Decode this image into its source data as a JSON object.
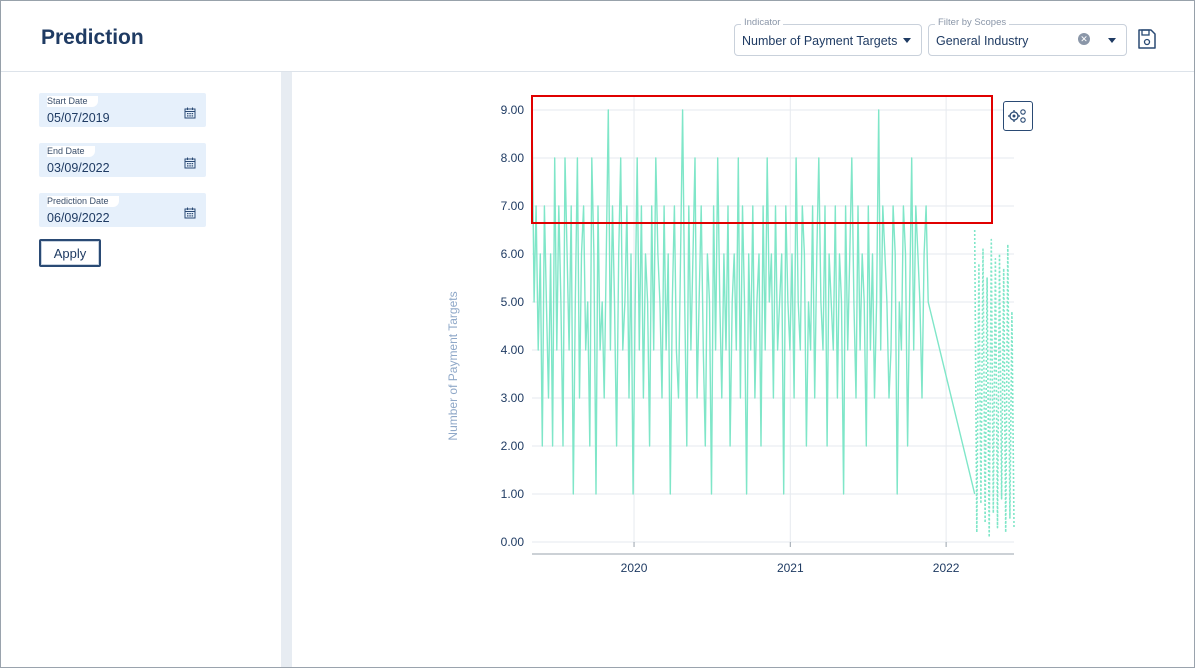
{
  "header": {
    "title": "Prediction",
    "indicator": {
      "legend": "Indicator",
      "value": "Number of Payment Targets"
    },
    "scope_filter": {
      "legend": "Filter by Scopes",
      "value": "General Industry"
    }
  },
  "sidebar": {
    "start_date": {
      "label": "Start Date",
      "value": "05/07/2019"
    },
    "end_date": {
      "label": "End Date",
      "value": "03/09/2022"
    },
    "prediction_date": {
      "label": "Prediction Date",
      "value": "06/09/2022"
    },
    "apply_label": "Apply"
  },
  "icons": {
    "indicator_dropdown": "chevron-down-icon",
    "scope_clear": "clear-icon",
    "scope_dropdown": "chevron-down-icon",
    "save": "save-icon",
    "calendar": "calendar-icon",
    "chart_settings": "settings-icon"
  },
  "colors": {
    "series_line": "#7fe6c8",
    "highlight_box": "#e00000",
    "title": "#1f3b63"
  },
  "chart_data": {
    "type": "line",
    "xlabel": "",
    "ylabel": "Number of Payment Targets",
    "yticks": [
      "0.00",
      "1.00",
      "2.00",
      "3.00",
      "4.00",
      "5.00",
      "6.00",
      "7.00",
      "8.00",
      "9.00"
    ],
    "xticks": [
      "2020",
      "2021",
      "2022"
    ],
    "ylim": [
      0,
      9
    ],
    "xlim": [
      "2019-05-07",
      "2022-06-09"
    ],
    "grid": true,
    "series": [
      {
        "style": "solid",
        "start": "2019-05-07",
        "end": "2021-11-20",
        "values": [
          9,
          5,
          7,
          4,
          6,
          2,
          7,
          5,
          3,
          6,
          2,
          8,
          4,
          7,
          5,
          2,
          8,
          6,
          4,
          7,
          1,
          5,
          8,
          3,
          6,
          7,
          4,
          5,
          2,
          8,
          6,
          1,
          7,
          4,
          5,
          3,
          6,
          9,
          4,
          7,
          5,
          2,
          6,
          8,
          4,
          5,
          7,
          3,
          6,
          1,
          5,
          8,
          4,
          7,
          3,
          6,
          5,
          2,
          7,
          4,
          8,
          6,
          5,
          3,
          7,
          4,
          6,
          1,
          5,
          7,
          4,
          3,
          6,
          9,
          5,
          2,
          7,
          4,
          6,
          8,
          3,
          5,
          7,
          4,
          2,
          6,
          5,
          1,
          7,
          4,
          8,
          5,
          3,
          6,
          4,
          7,
          2,
          5,
          6,
          4,
          8,
          3,
          7,
          5,
          1,
          6,
          4,
          7,
          3,
          5,
          6,
          2,
          7,
          4,
          8,
          5,
          6,
          3,
          7,
          4,
          5,
          6,
          1,
          7,
          5,
          4,
          6,
          3,
          8,
          5,
          4,
          7,
          6,
          2,
          5,
          4,
          7,
          3,
          6,
          8,
          5,
          4,
          7,
          2,
          6,
          5,
          4,
          7,
          3,
          6,
          5,
          1,
          7,
          4,
          6,
          8,
          5,
          3,
          7,
          4,
          6,
          5,
          2,
          7,
          4,
          6,
          3,
          5,
          9,
          4,
          7,
          6,
          5,
          3,
          4,
          7,
          6,
          1,
          5,
          4,
          7,
          6,
          2,
          5,
          8,
          4,
          7,
          6,
          5,
          3,
          6,
          7,
          5
        ],
        "tail": [
          {
            "x": "2021-11-20",
            "y": 5
          },
          {
            "x": "2022-03-09",
            "y": 1
          }
        ]
      },
      {
        "style": "dotted",
        "start": "2022-03-09",
        "end": "2022-06-09",
        "values": [
          6.5,
          0.2,
          5.8,
          0.8,
          6.1,
          0.4,
          5.5,
          0.1,
          6.3,
          0.6,
          5.9,
          0.3,
          6.0,
          0.9,
          5.7,
          0.2,
          6.2,
          0.5,
          4.8,
          0.3
        ]
      }
    ]
  }
}
